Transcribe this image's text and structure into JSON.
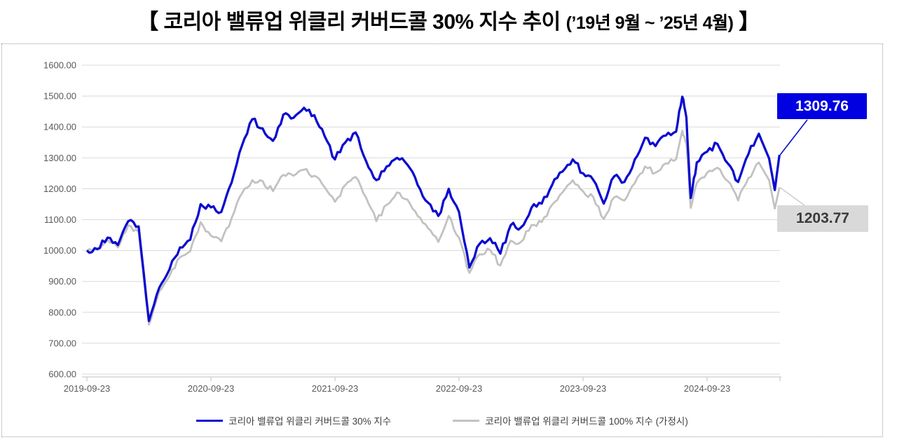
{
  "title": {
    "prefix": "【 코리아 밸류업 위클리 커버드콜 30% 지수 추이 ",
    "range": "(’19년 9월 ~ ’25년 4월)",
    "suffix": " 】"
  },
  "colors": {
    "line_blue": "#0b0bd0",
    "box_blue": "#0000e0",
    "line_gray": "#c2c2c2",
    "leader_gray": "#c9c9c9",
    "gray_box_bg": "#d9d9d9",
    "gray_box_text": "#3a3a3a",
    "grid": "#d9d9d9",
    "axis_line": "#bfbfbf",
    "axis_text": "#595959"
  },
  "chart_data": {
    "type": "line",
    "title": "코리아 밸류업 위클리 커버드콜 30% 지수 추이 (’19년 9월 ~ ’25년 4월)",
    "ylim": [
      600,
      1600
    ],
    "y_tick_step": 100,
    "y_tick_format_decimals": 2,
    "grid": "horizontal",
    "legend_position": "bottom",
    "x_tick_labels": [
      "2019-09-23",
      "2020-09-23",
      "2021-09-23",
      "2022-09-23",
      "2023-09-23",
      "2024-09-23"
    ],
    "x_tick_t_months": [
      0,
      12,
      24,
      36,
      48,
      60
    ],
    "anchors_t_months": [
      0,
      1,
      2,
      3,
      4,
      5,
      6,
      7,
      8,
      9,
      10,
      11,
      12,
      13,
      14,
      15,
      16,
      17,
      18,
      19,
      20,
      21,
      22,
      23,
      24,
      25,
      26,
      27,
      28,
      29,
      30,
      31,
      32,
      33,
      34,
      35,
      36,
      37,
      38,
      39,
      40,
      41,
      42,
      43,
      44,
      45,
      46,
      47,
      48,
      49,
      50,
      51,
      52,
      53,
      54,
      55,
      56,
      57,
      57.6,
      58,
      58.42,
      59,
      60,
      61,
      62,
      63,
      64,
      65,
      66,
      66.55,
      67
    ],
    "series": [
      {
        "name": "코리아 밸류업 위클리 커버드콜 30% 지수",
        "end_label": "1309.76",
        "end_value": 1309.76,
        "values": [
          1000,
          1005,
          1042,
          1018,
          1095,
          1078,
          772,
          880,
          940,
          1010,
          1035,
          1150,
          1140,
          1125,
          1220,
          1340,
          1425,
          1395,
          1355,
          1440,
          1430,
          1462,
          1438,
          1370,
          1295,
          1350,
          1382,
          1290,
          1228,
          1272,
          1300,
          1278,
          1212,
          1155,
          1112,
          1200,
          1125,
          945,
          1022,
          1040,
          990,
          1082,
          1075,
          1138,
          1152,
          1212,
          1255,
          1295,
          1250,
          1228,
          1152,
          1240,
          1222,
          1295,
          1365,
          1338,
          1372,
          1385,
          1498,
          1430,
          1170,
          1285,
          1320,
          1345,
          1282,
          1222,
          1312,
          1378,
          1298,
          1196,
          1309.76
        ]
      },
      {
        "name": "코리아 밸류업 위클리 커버드콜 100% 지수 (가정시)",
        "end_label": "1203.77",
        "end_value": 1203.77,
        "values": [
          1000,
          1002,
          1035,
          1010,
          1082,
          1060,
          760,
          868,
          918,
          978,
          998,
          1092,
          1048,
          1030,
          1105,
          1185,
          1228,
          1225,
          1192,
          1245,
          1242,
          1262,
          1242,
          1205,
          1158,
          1212,
          1238,
          1172,
          1095,
          1148,
          1188,
          1165,
          1112,
          1072,
          1028,
          1112,
          1042,
          928,
          988,
          1002,
          952,
          1032,
          1028,
          1082,
          1092,
          1148,
          1188,
          1228,
          1192,
          1172,
          1102,
          1172,
          1162,
          1218,
          1272,
          1252,
          1282,
          1295,
          1388,
          1345,
          1138,
          1218,
          1252,
          1268,
          1225,
          1162,
          1235,
          1285,
          1228,
          1136,
          1203.77
        ]
      }
    ]
  }
}
